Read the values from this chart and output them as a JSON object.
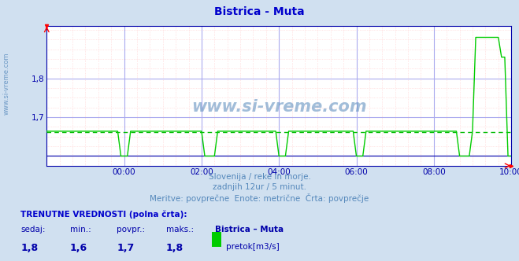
{
  "title": "Bistrica - Muta",
  "title_color": "#0000cc",
  "bg_color": "#d0e0f0",
  "plot_bg_color": "#ffffff",
  "line_color": "#00cc00",
  "avg_line_color": "#00bb00",
  "axis_color": "#0000aa",
  "grid_major_color": "#aaaaee",
  "grid_minor_color": "#ffcccc",
  "watermark_color": "#5588bb",
  "ymin": 1.575,
  "ymax": 1.935,
  "yticks": [
    1.6,
    1.7,
    1.8
  ],
  "ytick_labels": [
    "",
    "1,7",
    "1,8"
  ],
  "xlabel_times": [
    "00:00",
    "02:00",
    "04:00",
    "06:00",
    "08:00",
    "10:00"
  ],
  "xtick_positions": [
    24,
    48,
    72,
    96,
    120,
    144
  ],
  "avg_value": 1.662,
  "min_value": 1.6,
  "subtitle1": "Slovenija / reke in morje.",
  "subtitle2": "zadnjih 12ur / 5 minut.",
  "subtitle3": "Meritve: povprečne  Enote: metrične  Črta: povprečje",
  "footer_label1": "TRENUTNE VREDNOSTI (polna črta):",
  "footer_col1": "sedaj:",
  "footer_col2": "min.:",
  "footer_col3": "povpr.:",
  "footer_col4": "maks.:",
  "footer_col5": "Bistrica – Muta",
  "footer_val1": "1,8",
  "footer_val2": "1,6",
  "footer_val3": "1,7",
  "footer_val4": "1,8",
  "footer_unit": "pretok[m3/s]",
  "legend_color": "#00cc00",
  "watermark": "www.si-vreme.com",
  "left_watermark": "www.si-vreme.com"
}
